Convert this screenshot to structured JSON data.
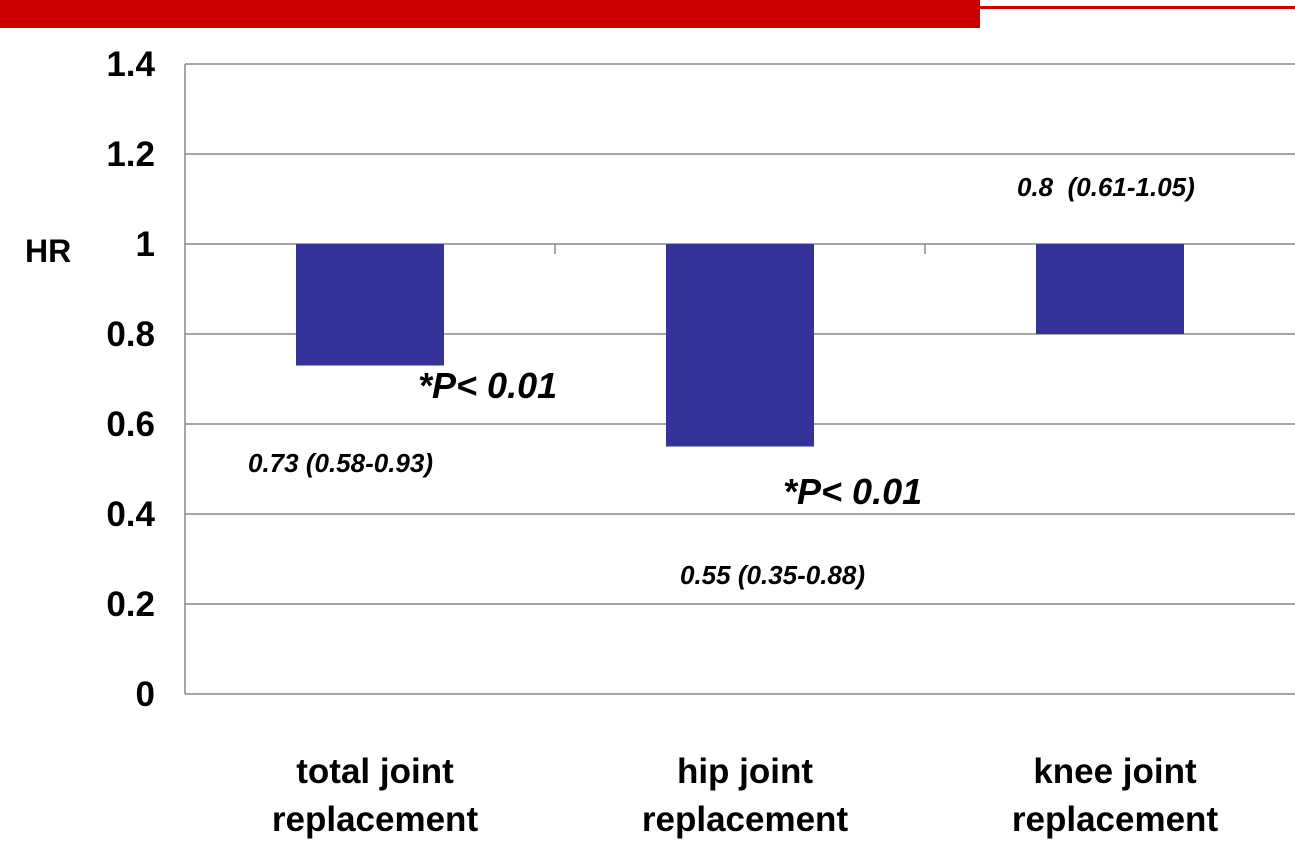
{
  "chart_data": {
    "type": "bar",
    "title": "",
    "xlabel": "",
    "ylabel": "HR",
    "ylim": [
      0,
      1.4
    ],
    "yticks": [
      "0",
      "0.2",
      "0.4",
      "0.6",
      "0.8",
      "1",
      "1.2",
      "1.4"
    ],
    "baseline": 1,
    "grid": true,
    "categories": [
      [
        "total joint",
        "replacement"
      ],
      [
        "hip joint",
        "replacement"
      ],
      [
        "knee joint",
        "replacement"
      ]
    ],
    "values": [
      0.73,
      0.55,
      0.8
    ],
    "bar_color": "#333399",
    "annotations": [
      {
        "category": 0,
        "ci_text": "0.73 (0.58-0.93)",
        "p_text": "*P< 0.01"
      },
      {
        "category": 1,
        "ci_text": "0.55 (0.35-0.88)",
        "p_text": "*P< 0.01"
      },
      {
        "category": 2,
        "ci_text": "0.8  (0.61-1.05)",
        "p_text": ""
      }
    ]
  },
  "colors": {
    "banner": "#cc0000",
    "banner_thin": "#cc0000",
    "grid": "#888888",
    "bar": "#333399"
  }
}
